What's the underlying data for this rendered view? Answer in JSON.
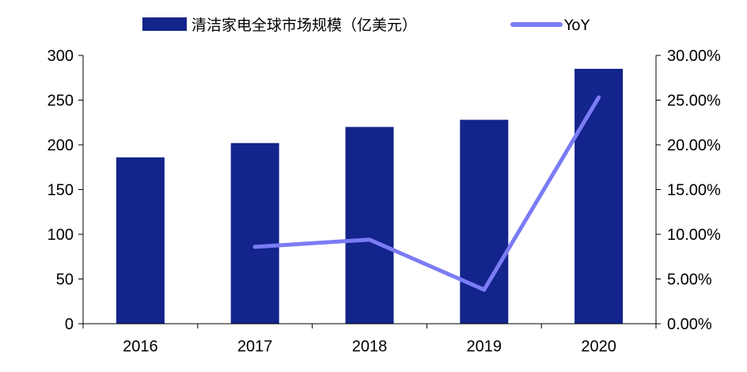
{
  "chart_data": {
    "type": "bar",
    "categories": [
      "2016",
      "2017",
      "2018",
      "2019",
      "2020"
    ],
    "series": [
      {
        "name": "清洁家电全球市场规模（亿美元）",
        "type": "bar",
        "axis": "left",
        "color": "#13248c",
        "values": [
          186,
          202,
          220,
          228,
          285
        ]
      },
      {
        "name": "YoY",
        "type": "line",
        "axis": "right",
        "color": "#7b7cf4",
        "values": [
          null,
          8.6,
          9.4,
          3.8,
          25.3
        ]
      }
    ],
    "y_left": {
      "ylim": [
        0,
        300
      ],
      "ticks": [
        0,
        50,
        100,
        150,
        200,
        250,
        300
      ],
      "tick_labels": [
        "0",
        "50",
        "100",
        "150",
        "200",
        "250",
        "300"
      ]
    },
    "y_right": {
      "ylim": [
        0,
        30
      ],
      "ticks": [
        0,
        5,
        10,
        15,
        20,
        25,
        30
      ],
      "tick_labels": [
        "0.00%",
        "5.00%",
        "10.00%",
        "15.00%",
        "20.00%",
        "25.00%",
        "30.00%"
      ]
    },
    "grid": false,
    "legend_position": "top"
  }
}
